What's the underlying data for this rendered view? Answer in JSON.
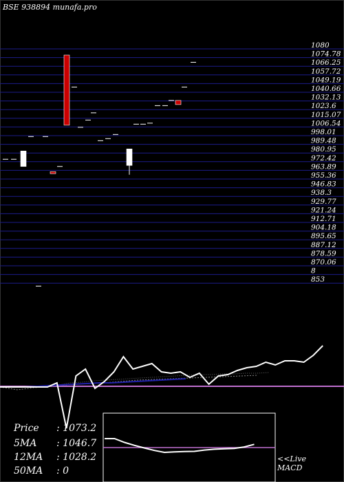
{
  "header": {
    "symbol_label": "BSE 938894",
    "site": "munafa.pro"
  },
  "colors": {
    "background": "#000000",
    "grid": "#1c1c8a",
    "price_up": "#ffffff",
    "price_down": "#cc0000",
    "ma_blue": "#2020aa",
    "pink_line": "#c06fd0",
    "white_line": "#ffffff"
  },
  "chart_data": [
    {
      "type": "candlestick",
      "y_axis_labels": [
        "1080",
        "1074.78",
        "1066.25",
        "1057.72",
        "1049.19",
        "1040.66",
        "1032.13",
        "1023.6",
        "1015.07",
        "1006.54",
        "998.01",
        "989.48",
        "980.95",
        "972.42",
        "963.89",
        "955.36",
        "946.83",
        "938.3",
        "929.77",
        "921.24",
        "912.71",
        "904.18",
        "895.65",
        "887.12",
        "878.59",
        "870.06",
        "8",
        "853"
      ],
      "candles": [
        {
          "o": 973,
          "h": 973,
          "l": 973,
          "c": 973
        },
        {
          "o": 973,
          "h": 973,
          "l": 973,
          "c": 973
        },
        {
          "o": 966,
          "h": 981,
          "l": 966,
          "c": 981
        },
        {
          "o": 995,
          "h": 995,
          "l": 995,
          "c": 995
        },
        {
          "o": 850,
          "h": 850,
          "l": 850,
          "c": 850
        },
        {
          "o": 995,
          "h": 995,
          "l": 995,
          "c": 995
        },
        {
          "o": 961,
          "h": 961,
          "l": 961,
          "c": 959
        },
        {
          "o": 966,
          "h": 966,
          "l": 966,
          "c": 966
        },
        {
          "o": 1074,
          "h": 1074,
          "l": 1006,
          "c": 1006
        },
        {
          "o": 1043,
          "h": 1043,
          "l": 1043,
          "c": 1043
        },
        {
          "o": 1004,
          "h": 1004,
          "l": 1004,
          "c": 1004
        },
        {
          "o": 1011,
          "h": 1011,
          "l": 1011,
          "c": 1011
        },
        {
          "o": 1018,
          "h": 1018,
          "l": 1018,
          "c": 1018
        },
        {
          "o": 991,
          "h": 991,
          "l": 991,
          "c": 991
        },
        {
          "o": 993,
          "h": 993,
          "l": 993,
          "c": 993
        },
        {
          "o": 997,
          "h": 997,
          "l": 997,
          "c": 997
        },
        {
          "o": 967,
          "h": 983,
          "l": 958,
          "c": 983
        },
        {
          "o": 1007,
          "h": 1007,
          "l": 1007,
          "c": 1007
        },
        {
          "o": 1007,
          "h": 1007,
          "l": 1007,
          "c": 1007
        },
        {
          "o": 1008,
          "h": 1008,
          "l": 1008,
          "c": 1008
        },
        {
          "o": 1025,
          "h": 1025,
          "l": 1025,
          "c": 1025
        },
        {
          "o": 1025,
          "h": 1025,
          "l": 1025,
          "c": 1025
        },
        {
          "o": 1030,
          "h": 1030,
          "l": 1030,
          "c": 1030
        },
        {
          "o": 1030,
          "h": 1030,
          "l": 1026,
          "c": 1026
        },
        {
          "o": 1043,
          "h": 1043,
          "l": 1043,
          "c": 1043
        },
        {
          "o": 1067,
          "h": 1067,
          "l": 1067,
          "c": 1067
        }
      ]
    },
    {
      "type": "line",
      "panel": "indicator",
      "series": [
        {
          "color": "white",
          "values": [
            46,
            46,
            46,
            46,
            40,
            36,
            31,
            30,
            28,
            32,
            38,
            28,
            27,
            24,
            36,
            20,
            22,
            16,
            24,
            44,
            30,
            44,
            34,
            33,
            24,
            46,
            50,
            33,
            32,
            32,
            32,
            36,
            26,
            26,
            24,
            26,
            26,
            21,
            16,
            30,
            22,
            20,
            22,
            21,
            18,
            18,
            18,
            13,
            10,
            6
          ]
        },
        {
          "color": "blue",
          "values": [
            46,
            46,
            46,
            45,
            44,
            43,
            42,
            41,
            40,
            40,
            39,
            38,
            37,
            36,
            35,
            34
          ]
        },
        {
          "color": "dark",
          "values": [
            46,
            46,
            46,
            46,
            44,
            43,
            40,
            39,
            37,
            36,
            35,
            34,
            33,
            32,
            31,
            30,
            29,
            28,
            28,
            27,
            27,
            26,
            26,
            25
          ]
        },
        {
          "color": "dark-lower",
          "values": [
            46,
            50,
            47,
            45,
            43,
            41,
            40,
            38,
            36,
            35,
            34,
            33,
            32,
            31,
            30,
            29
          ]
        }
      ],
      "pink_level": 61
    },
    {
      "type": "line",
      "panel": "macd",
      "series": [
        {
          "color": "white",
          "values": [
            0.0,
            0.0,
            -5.5,
            -9.8,
            -13.6,
            -17.2,
            -20.0,
            -19.3,
            -18.8,
            -18.5,
            -16.6,
            -15.4,
            -14.7,
            -14.2,
            -12.1,
            -8.3
          ]
        }
      ],
      "zero_line": true
    }
  ],
  "stats": {
    "price_label": "Price",
    "price_value": "1073.2",
    "ma5_label": "5MA",
    "ma5_value": "1046.7",
    "ma12_label": "12MA",
    "ma12_value": "1028.2",
    "ma50_label": "50MA",
    "ma50_value": "0"
  },
  "macd_caption": {
    "line1": "<<Live",
    "line2": "MACD"
  }
}
